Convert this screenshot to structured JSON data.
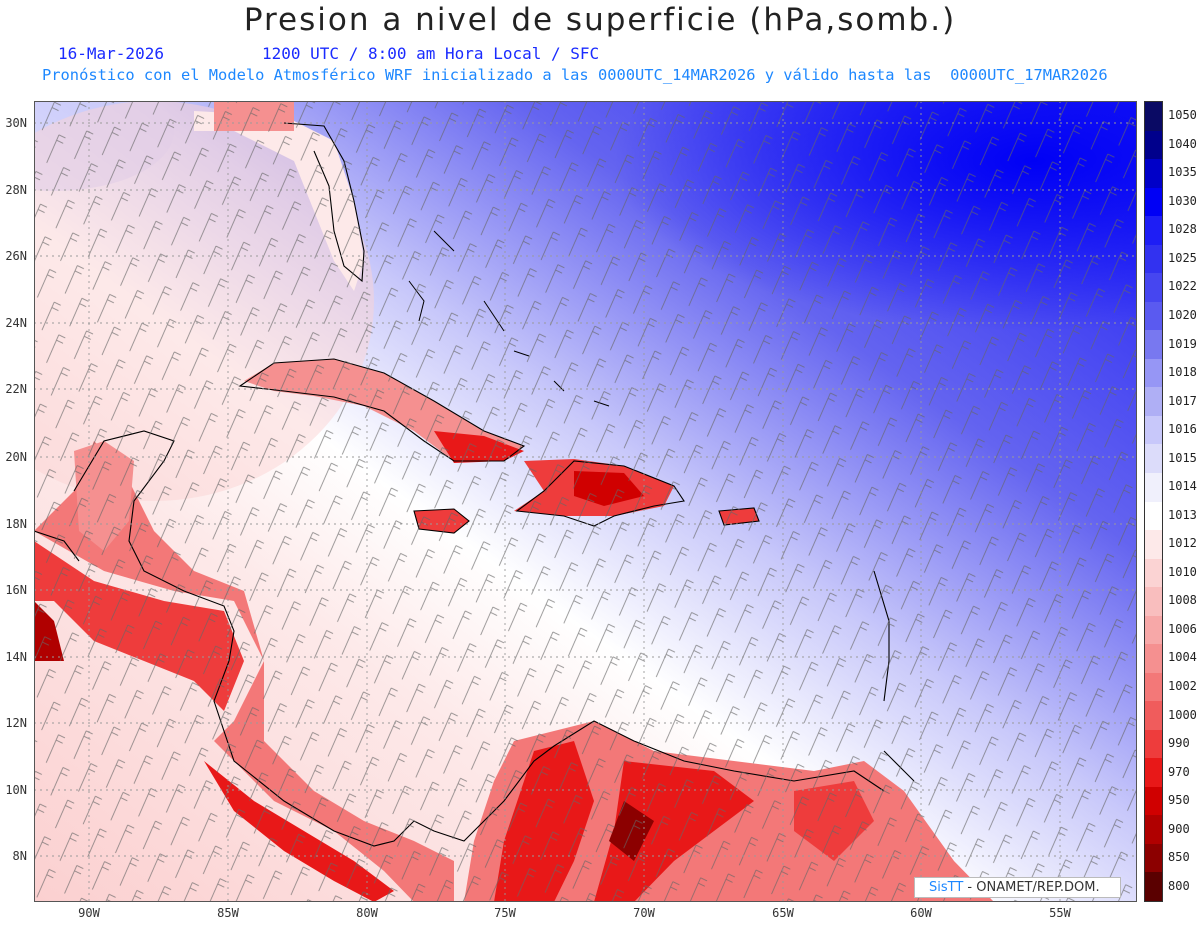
{
  "header": {
    "title": "Presion a nivel de superficie (hPa,somb.)",
    "date": "16-Mar-2026",
    "time_info": "1200 UTC / 8:00 am Hora Local / SFC",
    "model_info": "Pronóstico con el Modelo Atmosférico WRF inicializado a las 0000UTC_14MAR2026 y válido hasta las  0000UTC_17MAR2026"
  },
  "map": {
    "lat_labels": [
      "30N",
      "28N",
      "26N",
      "24N",
      "22N",
      "20N",
      "18N",
      "16N",
      "14N",
      "12N",
      "10N",
      "8N"
    ],
    "lon_labels": [
      "90W",
      "85W",
      "80W",
      "75W",
      "70W",
      "65W",
      "60W",
      "55W"
    ],
    "wind_barbs": "shown",
    "gridlines": "dotted"
  },
  "colorbar": {
    "levels": [
      "1050",
      "1040",
      "1035",
      "1030",
      "1028",
      "1025",
      "1022",
      "1020",
      "1019",
      "1018",
      "1017",
      "1016",
      "1015",
      "1014",
      "1013",
      "1012",
      "1010",
      "1008",
      "1006",
      "1004",
      "1002",
      "1000",
      "990",
      "970",
      "950",
      "900",
      "850",
      "800"
    ],
    "colors": [
      "#0a0a64",
      "#00008c",
      "#0000c8",
      "#0000f5",
      "#1e1ef5",
      "#3232f0",
      "#4646f0",
      "#5a5af0",
      "#7878f0",
      "#9696f5",
      "#afaff5",
      "#c8c8fa",
      "#dcdcfa",
      "#f0f0fc",
      "#ffffff",
      "#fde9e9",
      "#fbd3d3",
      "#f9bebe",
      "#f7a8a8",
      "#f59090",
      "#f37878",
      "#f05c5c",
      "#ee3c3c",
      "#e81818",
      "#d00000",
      "#b00000",
      "#8c0000",
      "#5a0000"
    ]
  },
  "credit": {
    "brand": "SisTT",
    "text": " - ONAMET/REP.DOM."
  }
}
